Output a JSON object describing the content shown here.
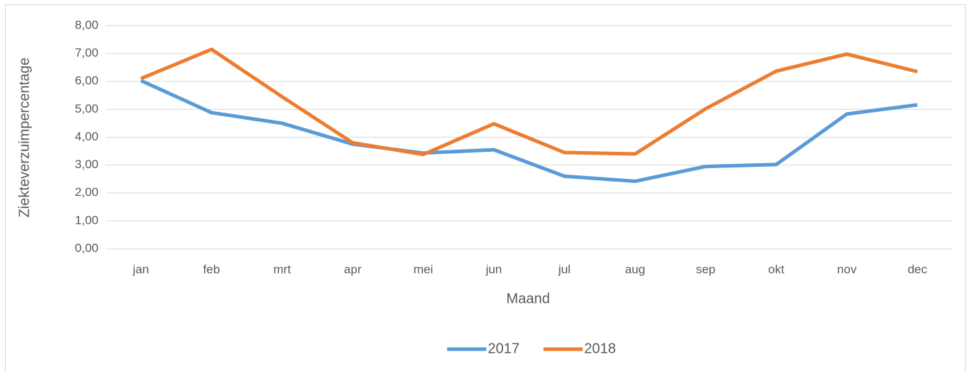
{
  "chart_data": {
    "type": "line",
    "x_label": "Maand",
    "y_label": "Ziekteverzuimpercentage",
    "categories": [
      "jan",
      "feb",
      "mrt",
      "apr",
      "mei",
      "jun",
      "jul",
      "aug",
      "sep",
      "okt",
      "nov",
      "dec"
    ],
    "series": [
      {
        "name": "2017",
        "color": "#5b9bd5",
        "values": [
          6.03,
          4.88,
          4.5,
          3.75,
          3.43,
          3.55,
          2.6,
          2.42,
          2.95,
          3.02,
          4.83,
          5.16
        ]
      },
      {
        "name": "2018",
        "color": "#ed7d31",
        "values": [
          6.1,
          7.15,
          5.45,
          3.8,
          3.38,
          4.48,
          3.45,
          3.4,
          5.02,
          6.37,
          6.98,
          6.35
        ]
      }
    ],
    "ylim": [
      0,
      8
    ],
    "yticks": [
      {
        "value": 0,
        "label": "0,00"
      },
      {
        "value": 1,
        "label": "1,00"
      },
      {
        "value": 2,
        "label": "2,00"
      },
      {
        "value": 3,
        "label": "3,00"
      },
      {
        "value": 4,
        "label": "4,00"
      },
      {
        "value": 5,
        "label": "5,00"
      },
      {
        "value": 6,
        "label": "6,00"
      },
      {
        "value": 7,
        "label": "7,00"
      },
      {
        "value": 8,
        "label": "8,00"
      }
    ],
    "grid": true,
    "legend": "bottom"
  }
}
